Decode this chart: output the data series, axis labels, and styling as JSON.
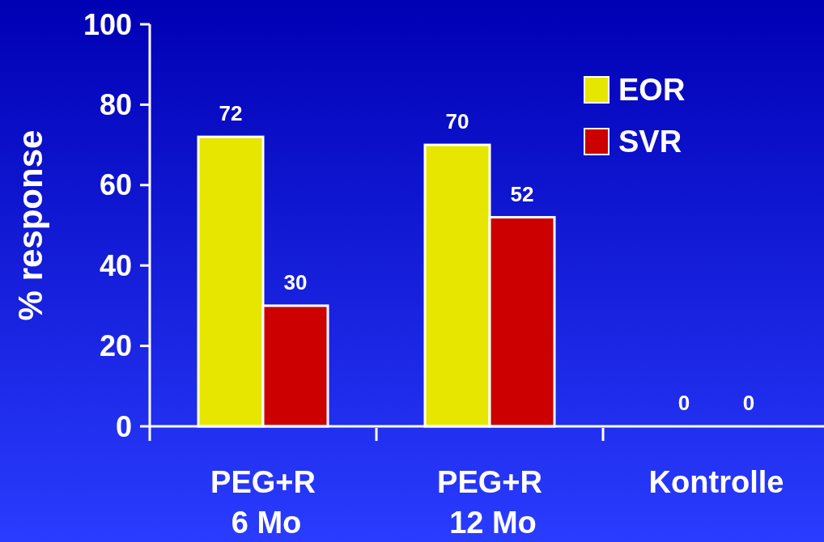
{
  "chart_data": {
    "type": "bar",
    "ylabel": "% response",
    "categories": [
      "PEG+R\n6 Mo",
      "PEG+R\n12 Mo",
      "Kontrolle"
    ],
    "series": [
      {
        "name": "EOR",
        "color": "#e6e600",
        "values": [
          72,
          70,
          0
        ]
      },
      {
        "name": "SVR",
        "color": "#cc0000",
        "values": [
          30,
          52,
          0
        ]
      }
    ],
    "ylim": [
      0,
      100
    ],
    "yticks": [
      0,
      20,
      40,
      60,
      80,
      100
    ],
    "data_labels": true,
    "legend": "top right",
    "grid": false
  }
}
